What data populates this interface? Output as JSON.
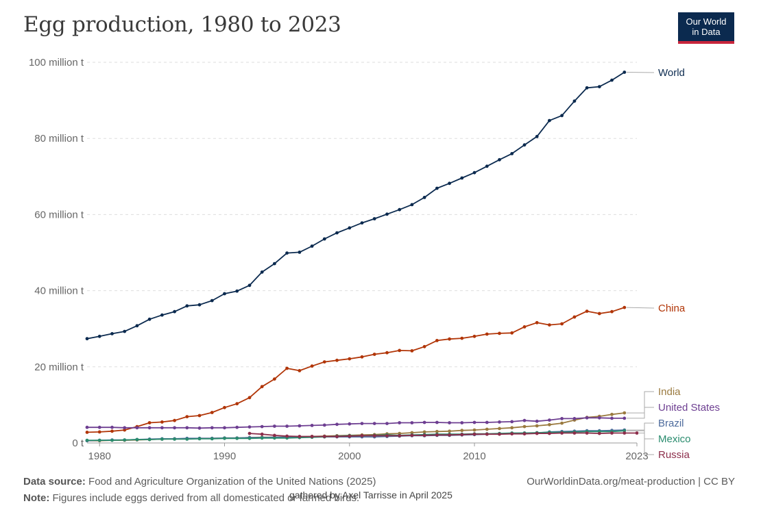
{
  "header": {
    "title": "Egg production, 1980 to 2023",
    "logo_line1": "Our World",
    "logo_line2": "in Data"
  },
  "footer": {
    "source_label": "Data source:",
    "source_text": "Food and Agriculture Organization of the United Nations (2025)",
    "note_label": "Note:",
    "note_text": "Figures include eggs derived from all domesticated or farmed birds.",
    "url_text": "OurWorldinData.org/meat-production | CC BY",
    "credit_text": "gathered by Axel Tarrisse in April 2025"
  },
  "chart_data": {
    "type": "line",
    "title": "Egg production, 1980 to 2023",
    "xlabel": "",
    "ylabel": "",
    "xlim": [
      1979,
      2023
    ],
    "ylim": [
      0,
      100
    ],
    "y_unit": "million t",
    "y_ticks": [
      {
        "value": 0,
        "label": "0 t"
      },
      {
        "value": 20,
        "label": "20 million t"
      },
      {
        "value": 40,
        "label": "40 million t"
      },
      {
        "value": 60,
        "label": "60 million t"
      },
      {
        "value": 80,
        "label": "80 million t"
      },
      {
        "value": 100,
        "label": "100 million t"
      }
    ],
    "x_ticks": [
      {
        "value": 1980,
        "label": "1980"
      },
      {
        "value": 1990,
        "label": "1990"
      },
      {
        "value": 2000,
        "label": "2000"
      },
      {
        "value": 2010,
        "label": "2010"
      },
      {
        "value": 2023,
        "label": "2023"
      }
    ],
    "grid": "horizontal-dashed",
    "legend": "right-end-labels",
    "series": [
      {
        "name": "World",
        "color": "#0b2a4f",
        "start": 1979,
        "values": [
          27.4,
          28.0,
          28.7,
          29.3,
          30.8,
          32.5,
          33.6,
          34.5,
          36.0,
          36.3,
          37.4,
          39.2,
          39.9,
          41.4,
          44.9,
          47.1,
          49.9,
          50.1,
          51.7,
          53.6,
          55.2,
          56.5,
          57.8,
          58.9,
          60.1,
          61.3,
          62.6,
          64.5,
          66.9,
          68.2,
          69.6,
          71.0,
          72.7,
          74.4,
          76.0,
          78.3,
          80.5,
          84.7,
          86.0,
          89.8,
          93.3,
          93.6,
          95.3,
          97.4
        ]
      },
      {
        "name": "China",
        "color": "#b13507",
        "start": 1979,
        "values": [
          2.8,
          2.9,
          3.1,
          3.4,
          4.3,
          5.3,
          5.5,
          5.9,
          6.9,
          7.2,
          8.0,
          9.3,
          10.3,
          11.9,
          14.8,
          16.8,
          19.6,
          19.0,
          20.2,
          21.3,
          21.7,
          22.1,
          22.6,
          23.3,
          23.7,
          24.3,
          24.2,
          25.3,
          26.9,
          27.3,
          27.5,
          28.0,
          28.6,
          28.8,
          28.9,
          30.5,
          31.6,
          31.0,
          31.3,
          33.1,
          34.6,
          34.0,
          34.5,
          35.6
        ]
      },
      {
        "name": "India",
        "color": "#9a7a3f",
        "start": 1979,
        "values": [
          0.6,
          0.6,
          0.7,
          0.7,
          0.8,
          0.9,
          1.0,
          1.1,
          1.1,
          1.2,
          1.2,
          1.3,
          1.3,
          1.4,
          1.5,
          1.5,
          1.6,
          1.6,
          1.7,
          1.8,
          1.9,
          2.0,
          2.1,
          2.2,
          2.4,
          2.5,
          2.7,
          2.9,
          3.0,
          3.1,
          3.3,
          3.4,
          3.6,
          3.8,
          4.0,
          4.3,
          4.5,
          4.8,
          5.2,
          6.0,
          6.7,
          7.0,
          7.5,
          7.9
        ]
      },
      {
        "name": "United States",
        "color": "#6d3e91",
        "start": 1979,
        "values": [
          4.1,
          4.1,
          4.1,
          4.0,
          4.0,
          4.0,
          4.0,
          4.0,
          4.0,
          3.9,
          4.0,
          4.0,
          4.1,
          4.2,
          4.3,
          4.4,
          4.4,
          4.5,
          4.6,
          4.7,
          4.9,
          5.0,
          5.1,
          5.1,
          5.1,
          5.3,
          5.3,
          5.4,
          5.4,
          5.3,
          5.3,
          5.4,
          5.4,
          5.5,
          5.6,
          5.9,
          5.7,
          6.0,
          6.4,
          6.4,
          6.6,
          6.6,
          6.5,
          6.5
        ]
      },
      {
        "name": "Brazil",
        "color": "#4c6a9c",
        "start": 1979,
        "values": [
          0.6,
          0.7,
          0.8,
          0.8,
          0.9,
          1.0,
          1.1,
          1.1,
          1.2,
          1.2,
          1.2,
          1.3,
          1.3,
          1.4,
          1.4,
          1.5,
          1.5,
          1.5,
          1.6,
          1.6,
          1.6,
          1.6,
          1.6,
          1.6,
          1.7,
          1.8,
          1.9,
          1.9,
          2.0,
          2.0,
          2.1,
          2.2,
          2.3,
          2.4,
          2.5,
          2.6,
          2.6,
          2.9,
          3.0,
          3.1,
          3.2,
          3.2,
          3.3,
          3.4
        ]
      },
      {
        "name": "Mexico",
        "color": "#2a8c6e",
        "start": 1979,
        "values": [
          0.7,
          0.7,
          0.7,
          0.8,
          0.9,
          0.9,
          1.0,
          1.0,
          1.0,
          1.1,
          1.1,
          1.2,
          1.2,
          1.2,
          1.3,
          1.3,
          1.3,
          1.4,
          1.5,
          1.6,
          1.8,
          1.9,
          1.9,
          2.0,
          2.1,
          2.0,
          2.1,
          2.2,
          2.3,
          2.3,
          2.3,
          2.4,
          2.4,
          2.5,
          2.6,
          2.6,
          2.7,
          2.8,
          2.8,
          2.9,
          3.0,
          3.0,
          3.0,
          3.2
        ]
      },
      {
        "name": "Russia",
        "color": "#8c2d4a",
        "start": 1992,
        "values": [
          2.5,
          2.3,
          2.0,
          1.8,
          1.7,
          1.7,
          1.7,
          1.7,
          1.8,
          1.9,
          1.9,
          1.9,
          1.9,
          2.0,
          2.0,
          2.1,
          2.1,
          2.2,
          2.3,
          2.3,
          2.3,
          2.4,
          2.4,
          2.5,
          2.5,
          2.6,
          2.6,
          2.6,
          2.5,
          2.6,
          2.6,
          2.6
        ]
      }
    ]
  }
}
